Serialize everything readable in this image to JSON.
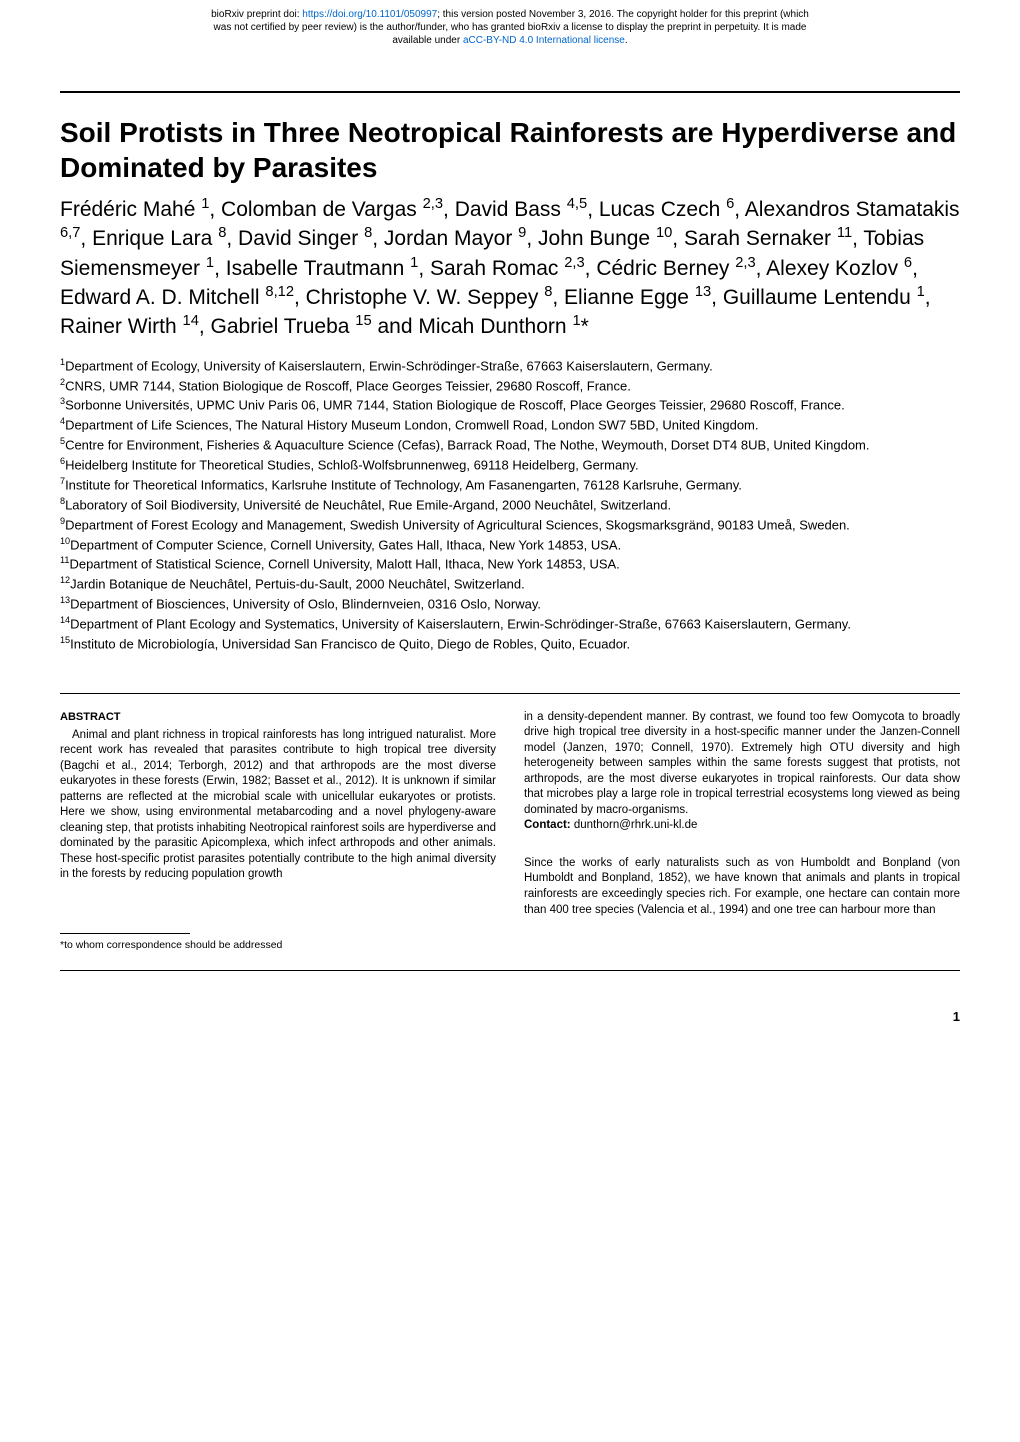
{
  "preprint": {
    "line1_prefix": "bioRxiv preprint doi: ",
    "doi_url": "https://doi.org/10.1101/050997",
    "line1_suffix": "; this version posted November 3, 2016. The copyright holder for this preprint (which",
    "line2": "was not certified by peer review) is the author/funder, who has granted bioRxiv a license to display the preprint in perpetuity. It is made",
    "line3_prefix": "available under ",
    "license_text": "aCC-BY-ND 4.0 International license",
    "line3_suffix": "."
  },
  "title": "Soil Protists in Three Neotropical Rainforests are Hyperdiverse and Dominated by Parasites",
  "authors_html": "Frédéric Mahé <sup>1</sup>, Colomban de Vargas <sup>2,3</sup>, David Bass <sup>4,5</sup>, Lucas Czech <sup>6</sup>, Alexandros Stamatakis <sup>6,7</sup>, Enrique Lara <sup>8</sup>, David Singer <sup>8</sup>, Jordan Mayor <sup>9</sup>, John Bunge <sup>10</sup>, Sarah Sernaker <sup>11</sup>, Tobias Siemensmeyer <sup>1</sup>, Isabelle Trautmann <sup>1</sup>, Sarah Romac <sup>2,3</sup>, Cédric Berney <sup>2,3</sup>, Alexey Kozlov <sup>6</sup>, Edward A. D. Mitchell <sup>8,12</sup>, Christophe V. W. Seppey <sup>8</sup>, Elianne Egge <sup>13</sup>, Guillaume Lentendu <sup>1</sup>, Rainer Wirth <sup>14</sup>, Gabriel Trueba <sup>15</sup> and Micah Dunthorn <sup>1</sup>*",
  "affiliations": [
    "<sup>1</sup>Department of Ecology, University of Kaiserslautern, Erwin-Schrödinger-Straße, 67663 Kaiserslautern, Germany.",
    "<sup>2</sup>CNRS, UMR 7144, Station Biologique de Roscoff, Place Georges Teissier, 29680 Roscoff, France.",
    "<sup>3</sup>Sorbonne Universités, UPMC Univ Paris 06, UMR 7144, Station Biologique de Roscoff, Place Georges Teissier, 29680 Roscoff, France.",
    "<sup>4</sup>Department of Life Sciences, The Natural History Museum London, Cromwell Road, London SW7 5BD, United Kingdom.",
    "<sup>5</sup>Centre for Environment, Fisheries & Aquaculture Science (Cefas), Barrack Road, The Nothe, Weymouth, Dorset DT4 8UB, United Kingdom.",
    "<sup>6</sup>Heidelberg Institute for Theoretical Studies, Schloß-Wolfsbrunnenweg, 69118 Heidelberg, Germany.",
    "<sup>7</sup>Institute for Theoretical Informatics, Karlsruhe Institute of Technology, Am Fasanengarten, 76128 Karlsruhe, Germany.",
    "<sup>8</sup>Laboratory of Soil Biodiversity, Université de Neuchâtel, Rue Emile-Argand, 2000 Neuchâtel, Switzerland.",
    "<sup>9</sup>Department of Forest Ecology and Management, Swedish University of Agricultural Sciences, Skogsmarksgränd, 90183 Umeå, Sweden.",
    "<sup>10</sup>Department of Computer Science, Cornell University, Gates Hall, Ithaca, New York 14853, USA.",
    "<sup>11</sup>Department of Statistical Science, Cornell University, Malott Hall, Ithaca, New York 14853, USA.",
    "<sup>12</sup>Jardin Botanique de Neuchâtel, Pertuis-du-Sault, 2000 Neuchâtel, Switzerland.",
    "<sup>13</sup>Department of Biosciences, University of Oslo, Blindernveien, 0316 Oslo, Norway.",
    "<sup>14</sup>Department of Plant Ecology and Systematics, University of Kaiserslautern, Erwin-Schrödinger-Straße, 67663 Kaiserslautern, Germany.",
    "<sup>15</sup>Instituto de Microbiología, Universidad San Francisco de Quito, Diego de Robles, Quito, Ecuador."
  ],
  "abstract": {
    "heading": "ABSTRACT",
    "text_col1": "Animal and plant richness in tropical rainforests has long intrigued naturalist. More recent work has revealed that parasites contribute to high tropical tree diversity (Bagchi et al., 2014; Terborgh, 2012) and that arthropods are the most diverse eukaryotes in these forests (Erwin, 1982; Basset et al., 2012). It is unknown if similar patterns are reflected at the microbial scale with unicellular eukaryotes or protists. Here we show, using environmental metabarcoding and a novel phylogeny-aware cleaning step, that protists inhabiting Neotropical rainforest soils are hyperdiverse and dominated by the parasitic Apicomplexa, which infect arthropods and other animals. These host-specific protist parasites potentially contribute to the high animal diversity in the forests by reducing population growth",
    "text_col2": "in a density-dependent manner. By contrast, we found too few Oomycota to broadly drive high tropical tree diversity in a host-specific manner under the Janzen-Connell model (Janzen, 1970; Connell, 1970). Extremely high OTU diversity and high heterogeneity between samples within the same forests suggest that protists, not arthropods, are the most diverse eukaryotes in tropical rainforests. Our data show that microbes play a large role in tropical terrestrial ecosystems long viewed as being dominated by macro-organisms.",
    "contact_label": "Contact: ",
    "contact_value": "dunthorn@rhrk.uni-kl.de"
  },
  "body_col2": "Since the works of early naturalists such as von Humboldt and Bonpland (von Humboldt and Bonpland, 1852), we have known that animals and plants in tropical rainforests are exceedingly species rich. For example, one hectare can contain more than 400 tree species (Valencia et al., 1994) and one tree can harbour more than",
  "footnote": "*to whom correspondence should be addressed",
  "page_number": "1"
}
